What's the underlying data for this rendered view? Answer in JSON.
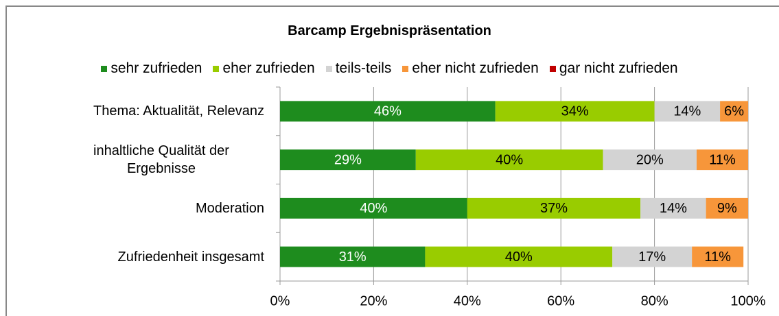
{
  "chart_data": {
    "type": "stacked_barh",
    "title": "Barcamp Ergebnispräsentation",
    "categories": [
      "Thema: Aktualität, Relevanz",
      "inhaltliche Qualität der Ergebnisse",
      "Moderation",
      "Zufriedenheit insgesamt"
    ],
    "series": [
      {
        "name": "sehr zufrieden",
        "color": "#1e8c1e",
        "values": [
          46,
          29,
          40,
          31
        ],
        "value_labels": [
          "46%",
          "29%",
          "40%",
          "31%"
        ]
      },
      {
        "name": "eher zufrieden",
        "color": "#99cc00",
        "values": [
          34,
          40,
          37,
          40
        ],
        "value_labels": [
          "34%",
          "40%",
          "37%",
          "40%"
        ]
      },
      {
        "name": "teils-teils",
        "color": "#d3d3d3",
        "values": [
          14,
          20,
          14,
          17
        ],
        "value_labels": [
          "14%",
          "20%",
          "14%",
          "17%"
        ]
      },
      {
        "name": "eher  nicht zufrieden",
        "color": "#f7963a",
        "values": [
          6,
          11,
          9,
          11
        ],
        "value_labels": [
          "6%",
          "11%",
          "9%",
          "11%"
        ]
      },
      {
        "name": "gar nicht zufrieden",
        "color": "#c00000",
        "values": [
          0,
          0,
          0,
          0
        ]
      }
    ],
    "xlim": [
      0,
      100
    ],
    "xticks": [
      {
        "value": 0,
        "label": "0%"
      },
      {
        "value": 20,
        "label": "20%"
      },
      {
        "value": 40,
        "label": "40%"
      },
      {
        "value": 60,
        "label": "60%"
      },
      {
        "value": 80,
        "label": "80%"
      },
      {
        "value": 100,
        "label": "100%"
      }
    ],
    "grid": true
  }
}
